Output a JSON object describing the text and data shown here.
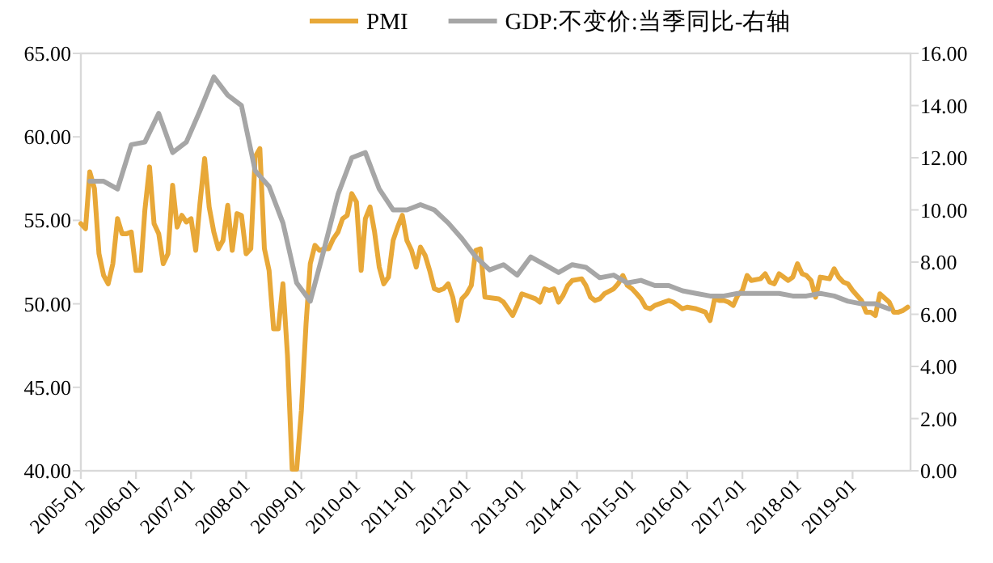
{
  "chart_data": {
    "type": "line",
    "legend": "top",
    "xlim": [
      "2005-01",
      "2020-01-20"
    ],
    "xticks": [
      "2005-01",
      "2006-01",
      "2007-01",
      "2008-01",
      "2009-01",
      "2010-01",
      "2011-01",
      "2012-01",
      "2013-01",
      "2014-01",
      "2015-01",
      "2016-01",
      "2017-01",
      "2018-01",
      "2019-01"
    ],
    "ylim": [
      40,
      65
    ],
    "yticks": [
      {
        "value": 40,
        "label": "40.00"
      },
      {
        "value": 45,
        "label": "45.00"
      },
      {
        "value": 50,
        "label": "50.00"
      },
      {
        "value": 55,
        "label": "55.00"
      },
      {
        "value": 60,
        "label": "60.00"
      },
      {
        "value": 65,
        "label": "65.00"
      }
    ],
    "y2lim": [
      0,
      16
    ],
    "y2ticks": [
      {
        "value": 0,
        "label": "0.00"
      },
      {
        "value": 2,
        "label": "2.00"
      },
      {
        "value": 4,
        "label": "4.00"
      },
      {
        "value": 6,
        "label": "6.00"
      },
      {
        "value": 8,
        "label": "8.00"
      },
      {
        "value": 10,
        "label": "10.00"
      },
      {
        "value": 12,
        "label": "12.00"
      },
      {
        "value": 14,
        "label": "14.00"
      },
      {
        "value": 16,
        "label": "16.00"
      }
    ],
    "series": [
      {
        "name": "PMI",
        "color": "#e8a838",
        "x": [
          "2005-01",
          "2005-02",
          "2005-03",
          "2005-04",
          "2005-05",
          "2005-06",
          "2005-07",
          "2005-08",
          "2005-09",
          "2005-10",
          "2005-11",
          "2005-12",
          "2006-01",
          "2006-02",
          "2006-03",
          "2006-04",
          "2006-05",
          "2006-06",
          "2006-07",
          "2006-08",
          "2006-09",
          "2006-10",
          "2006-11",
          "2006-12",
          "2007-01",
          "2007-02",
          "2007-03",
          "2007-04",
          "2007-05",
          "2007-06",
          "2007-07",
          "2007-08",
          "2007-09",
          "2007-10",
          "2007-11",
          "2007-12",
          "2008-01",
          "2008-02",
          "2008-03",
          "2008-04",
          "2008-05",
          "2008-06",
          "2008-07",
          "2008-08",
          "2008-09",
          "2008-10",
          "2008-11",
          "2008-12",
          "2009-01",
          "2009-02",
          "2009-03",
          "2009-04",
          "2009-05",
          "2009-06",
          "2009-07",
          "2009-08",
          "2009-09",
          "2009-10",
          "2009-11",
          "2009-12",
          "2010-01",
          "2010-02",
          "2010-03",
          "2010-04",
          "2010-05",
          "2010-06",
          "2010-07",
          "2010-08",
          "2010-09",
          "2010-10",
          "2010-11",
          "2010-12",
          "2011-01",
          "2011-02",
          "2011-03",
          "2011-04",
          "2011-05",
          "2011-06",
          "2011-07",
          "2011-08",
          "2011-09",
          "2011-10",
          "2011-11",
          "2011-12",
          "2012-01",
          "2012-02",
          "2012-03",
          "2012-04",
          "2012-05",
          "2012-08",
          "2012-09",
          "2012-11",
          "2012-12",
          "2013-01",
          "2013-02",
          "2013-04",
          "2013-05",
          "2013-06",
          "2013-07",
          "2013-08",
          "2013-09",
          "2013-10",
          "2013-11",
          "2013-12",
          "2014-02",
          "2014-03",
          "2014-04",
          "2014-05",
          "2014-06",
          "2014-07",
          "2014-09",
          "2014-10",
          "2014-11",
          "2014-12",
          "2015-01",
          "2015-02",
          "2015-03",
          "2015-04",
          "2015-05",
          "2015-06",
          "2015-08",
          "2015-09",
          "2015-10",
          "2015-11",
          "2015-12",
          "2016-01",
          "2016-03",
          "2016-04",
          "2016-05",
          "2016-06",
          "2016-07",
          "2016-08",
          "2016-09",
          "2016-10",
          "2016-11",
          "2016-12",
          "2017-01",
          "2017-02",
          "2017-03",
          "2017-05",
          "2017-06",
          "2017-07",
          "2017-08",
          "2017-09",
          "2017-11",
          "2017-12",
          "2018-01",
          "2018-02",
          "2018-03",
          "2018-04",
          "2018-05",
          "2018-06",
          "2018-08",
          "2018-09",
          "2018-10",
          "2018-11",
          "2018-12",
          "2019-01",
          "2019-03",
          "2019-04",
          "2019-05",
          "2019-06",
          "2019-07",
          "2019-09",
          "2019-10",
          "2019-11",
          "2019-12",
          "2020-01"
        ],
        "values": [
          54.8,
          54.5,
          57.9,
          56.9,
          53.0,
          51.7,
          51.2,
          52.4,
          55.1,
          54.2,
          54.2,
          54.3,
          52.0,
          52.0,
          55.6,
          58.2,
          54.8,
          54.2,
          52.4,
          53.0,
          57.1,
          54.6,
          55.3,
          54.9,
          55.1,
          53.2,
          56.0,
          58.7,
          55.8,
          54.3,
          53.3,
          53.8,
          55.9,
          53.2,
          55.4,
          55.3,
          53.0,
          53.3,
          58.8,
          59.3,
          53.3,
          52.0,
          48.5,
          48.5,
          51.2,
          46.9,
          40.1,
          40.1,
          43.6,
          48.8,
          52.4,
          53.5,
          53.2,
          53.3,
          53.3,
          53.9,
          54.3,
          55.1,
          55.3,
          56.6,
          56.1,
          52.0,
          55.1,
          55.8,
          54.3,
          52.2,
          51.2,
          51.6,
          53.8,
          54.6,
          55.3,
          53.8,
          53.2,
          52.2,
          53.4,
          52.9,
          52.0,
          50.9,
          50.8,
          50.9,
          51.2,
          50.4,
          49.0,
          50.3,
          50.6,
          51.1,
          53.2,
          53.3,
          50.4,
          50.3,
          50.1,
          49.3,
          49.9,
          50.6,
          50.5,
          50.3,
          50.1,
          50.9,
          50.8,
          50.9,
          50.1,
          50.5,
          51.1,
          51.4,
          51.5,
          51.1,
          50.4,
          50.2,
          50.3,
          50.6,
          50.9,
          51.2,
          51.7,
          51.1,
          50.9,
          50.6,
          50.3,
          49.8,
          49.7,
          49.9,
          50.1,
          50.2,
          50.1,
          49.9,
          49.7,
          49.8,
          49.7,
          49.6,
          49.5,
          49.0,
          50.3,
          50.2,
          50.2,
          50.1,
          49.9,
          50.5,
          50.8,
          51.7,
          51.4,
          51.5,
          51.8,
          51.3,
          51.2,
          51.8,
          51.4,
          51.6,
          52.4,
          51.8,
          51.7,
          51.4,
          50.4,
          51.6,
          51.5,
          52.1,
          51.6,
          51.3,
          51.2,
          50.8,
          50.2,
          49.5,
          49.5,
          49.3,
          50.6,
          50.1,
          49.5,
          49.5,
          49.6,
          49.8
        ]
      },
      {
        "name": "GDP:不变价:当季同比-右轴",
        "color": "#a6a6a6",
        "axis": "y2",
        "x": [
          "2005-03",
          "2005-06",
          "2005-09",
          "2005-12",
          "2006-03",
          "2006-06",
          "2006-09",
          "2006-12",
          "2007-03",
          "2007-06",
          "2007-09",
          "2007-12",
          "2008-03",
          "2008-06",
          "2008-09",
          "2008-12",
          "2009-03",
          "2009-06",
          "2009-09",
          "2009-12",
          "2010-03",
          "2010-06",
          "2010-09",
          "2010-12",
          "2011-03",
          "2011-06",
          "2011-09",
          "2011-12",
          "2012-03",
          "2012-06",
          "2012-09",
          "2012-12",
          "2013-03",
          "2013-06",
          "2013-09",
          "2013-12",
          "2014-03",
          "2014-06",
          "2014-09",
          "2014-12",
          "2015-03",
          "2015-06",
          "2015-09",
          "2015-12",
          "2016-03",
          "2016-06",
          "2016-09",
          "2016-12",
          "2017-03",
          "2017-06",
          "2017-09",
          "2017-12",
          "2018-03",
          "2018-06",
          "2018-09",
          "2018-12",
          "2019-03",
          "2019-06",
          "2019-09"
        ],
        "values": [
          11.1,
          11.1,
          10.8,
          12.5,
          12.6,
          13.7,
          12.2,
          12.6,
          13.8,
          15.1,
          14.4,
          14.0,
          11.5,
          10.9,
          9.5,
          7.2,
          6.5,
          8.5,
          10.6,
          12.0,
          12.2,
          10.8,
          10.0,
          10.0,
          10.2,
          10.0,
          9.5,
          8.9,
          8.2,
          7.7,
          7.9,
          7.5,
          8.2,
          7.9,
          7.6,
          7.9,
          7.8,
          7.4,
          7.5,
          7.2,
          7.3,
          7.1,
          7.1,
          6.9,
          6.8,
          6.7,
          6.7,
          6.8,
          6.8,
          6.8,
          6.8,
          6.7,
          6.7,
          6.8,
          6.7,
          6.5,
          6.4,
          6.4,
          6.2
        ]
      }
    ]
  }
}
